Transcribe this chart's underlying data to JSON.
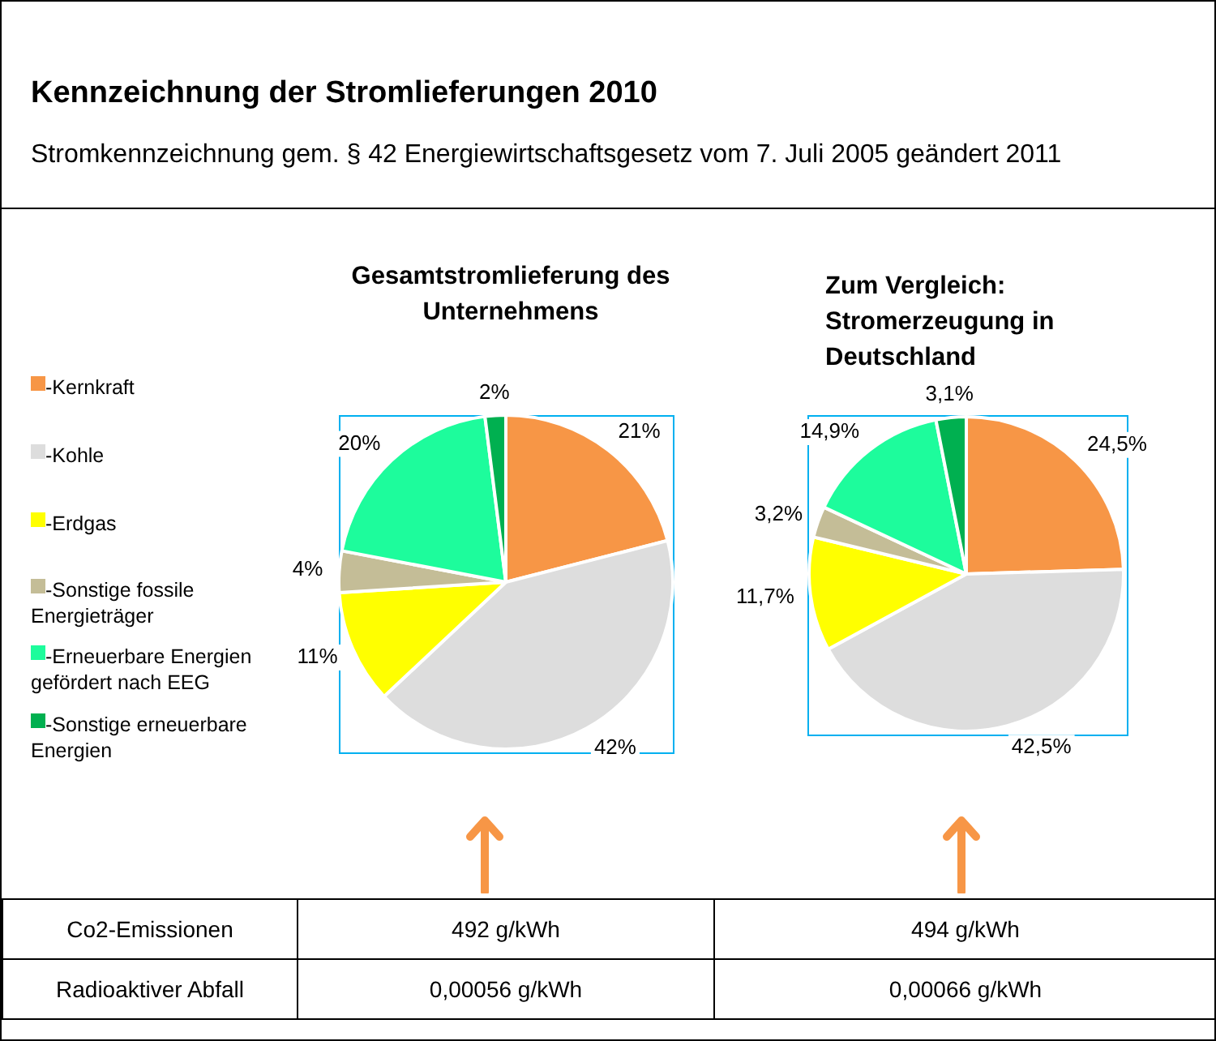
{
  "chart_data": [
    {
      "type": "other",
      "title": "Kennzeichnung der Stromlieferungen 2010",
      "subtitle": "Stromkennzeichnung gem. § 42 Energiewirtschaftsgesetz vom 7. Juli 2005 geändert 2011"
    },
    {
      "type": "pie",
      "title": "Gesamtstromlieferung des Unternehmens",
      "categories": [
        "-Kernkraft",
        "-Kohle",
        "-Erdgas",
        "-Sonstige fossile Energieträger",
        "-Erneuerbare Energien gefördert nach EEG",
        "-Sonstige erneuerbare Energien"
      ],
      "values": [
        21,
        42,
        11,
        4,
        20,
        2
      ],
      "value_labels": [
        "21%",
        "42%",
        "11%",
        "4%",
        "20%",
        "2%"
      ],
      "colors": [
        "#f79646",
        "#dddddd",
        "#ffff00",
        "#c4bd97",
        "#1dfc9c",
        "#00b050"
      ],
      "legend": "left"
    },
    {
      "type": "pie",
      "title": "Zum Vergleich: Stromerzeugung in Deutschland",
      "categories": [
        null,
        null,
        null,
        null,
        null,
        null
      ],
      "values": [
        24.5,
        42.5,
        11.7,
        3.2,
        14.9,
        3.1
      ],
      "value_labels": [
        "24,5%",
        "42,5%",
        "11,7%",
        "3,2%",
        "14,9%",
        "3,1%"
      ],
      "colors": [
        "#f79646",
        "#dddddd",
        "#ffff00",
        "#c4bd97",
        "#1dfc9c",
        "#00b050"
      ]
    },
    {
      "type": "other",
      "annotations": [
        "Co2-Emissionen",
        "492 g/kWh",
        "494 g/kWh",
        "Radioaktiver Abfall",
        "0,00056 g/kWh",
        "0,00066 g/kWh"
      ]
    }
  ]
}
